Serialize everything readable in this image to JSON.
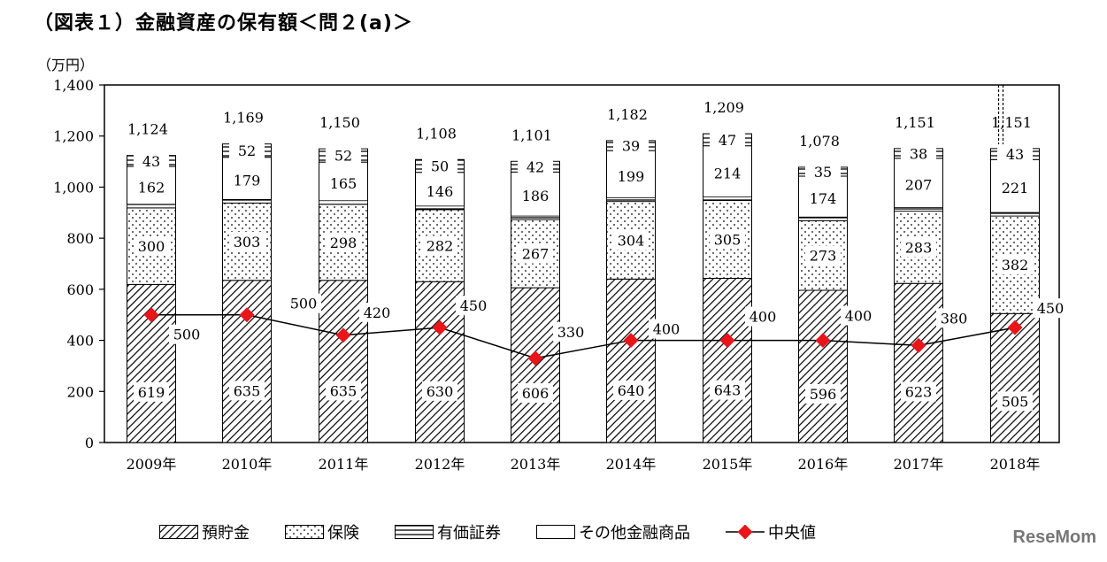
{
  "title": "（図表１）金融資産の保有額＜問２(a)＞",
  "unit_label": "（万円）",
  "watermark": "ReseMom",
  "colors": {
    "median": "#e8151b",
    "text": "#000000",
    "bar_bg": "#ffffff"
  },
  "chart_data": {
    "type": "bar",
    "stacked": true,
    "categories": [
      "2009年",
      "2010年",
      "2011年",
      "2012年",
      "2013年",
      "2014年",
      "2015年",
      "2016年",
      "2017年",
      "2018年"
    ],
    "ylim": [
      0,
      1400
    ],
    "yticks": [
      0,
      200,
      400,
      600,
      800,
      1000,
      1200,
      1400
    ],
    "ytick_labels": [
      "0",
      "200",
      "400",
      "600",
      "800",
      "1,000",
      "1,200",
      "1,400"
    ],
    "series": [
      {
        "name": "預貯金",
        "pattern": "hatch",
        "values": [
          619,
          635,
          635,
          630,
          606,
          640,
          643,
          596,
          623,
          505
        ],
        "labels": [
          "619",
          "635",
          "635",
          "630",
          "606",
          "640",
          "643",
          "596",
          "623",
          "505"
        ]
      },
      {
        "name": "保険",
        "pattern": "dots",
        "values": [
          300,
          303,
          298,
          282,
          267,
          304,
          305,
          273,
          283,
          382
        ],
        "labels": [
          "300",
          "303",
          "298",
          "282",
          "267",
          "304",
          "305",
          "273",
          "283",
          "382"
        ]
      },
      {
        "name": "有価証券",
        "pattern": "hlines",
        "values": [
          0,
          0,
          0,
          0,
          0,
          0,
          0,
          0,
          0,
          0
        ],
        "labels": []
      },
      {
        "name": "その他金融商品",
        "pattern": "blank",
        "values": [
          162,
          179,
          165,
          146,
          186,
          199,
          214,
          174,
          207,
          221
        ],
        "labels": [
          "162",
          "179",
          "165",
          "146",
          "186",
          "199",
          "214",
          "174",
          "207",
          "221"
        ]
      },
      {
        "name": "",
        "pattern": "hlines",
        "values": [
          43,
          52,
          52,
          50,
          42,
          39,
          47,
          35,
          38,
          43
        ],
        "labels": [
          "43",
          "52",
          "52",
          "50",
          "42",
          "39",
          "47",
          "35",
          "38",
          "43"
        ]
      }
    ],
    "totals": [
      1124,
      1169,
      1150,
      1108,
      1101,
      1182,
      1209,
      1078,
      1151,
      1151
    ],
    "total_labels": [
      "1,124",
      "1,169",
      "1,150",
      "1,108",
      "1,101",
      "1,182",
      "1,209",
      "1,078",
      "1,151",
      "1,151"
    ],
    "median": {
      "name": "中央値",
      "values": [
        500,
        500,
        420,
        450,
        330,
        400,
        400,
        400,
        380,
        450
      ],
      "labels": [
        "500",
        "500",
        "420",
        "450",
        "330",
        "400",
        "400",
        "400",
        "380",
        "450"
      ]
    },
    "legend": [
      "預貯金",
      "保険",
      "有価証券",
      "その他金融商品",
      "中央値"
    ],
    "legend_position": "bottom",
    "grid": false
  }
}
